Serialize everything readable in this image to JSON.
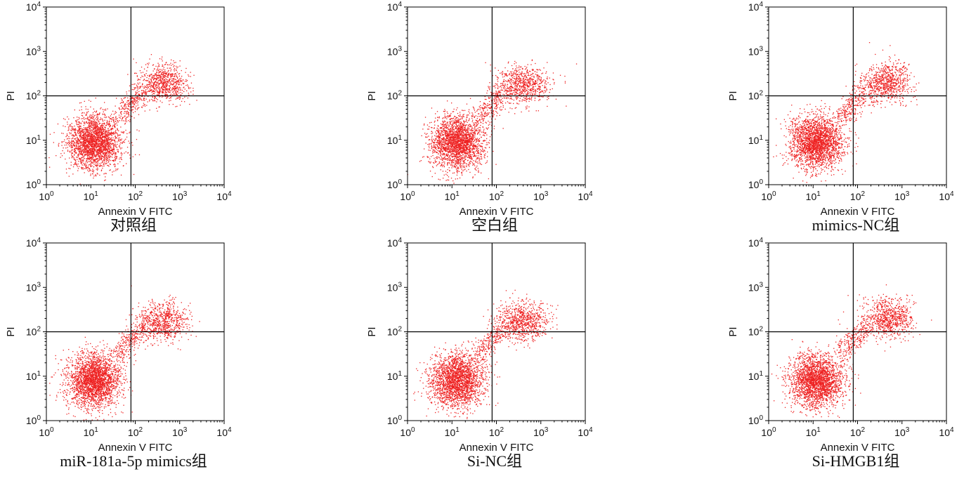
{
  "colors": {
    "points": "#ee2222",
    "axes": "#000000",
    "quadrant_lines": "#000000",
    "text": "#111111"
  },
  "chart_data": [
    {
      "type": "scatter",
      "caption": "对照组",
      "xlabel": "Annexin V FITC",
      "ylabel": "PI",
      "xscale": "log",
      "yscale": "log",
      "xlim": [
        1,
        10000
      ],
      "ylim": [
        1,
        10000
      ],
      "quadrant_gate": {
        "x": 80,
        "y": 100
      },
      "x_ticks": [
        "10^0",
        "10^1",
        "10^2",
        "10^3",
        "10^4"
      ],
      "y_ticks": [
        "10^0",
        "10^1",
        "10^2",
        "10^3",
        "10^4"
      ],
      "populations": [
        {
          "population": "live",
          "center": [
            12,
            9
          ],
          "spread_decades": [
            0.3,
            0.3
          ],
          "n_points": 2400
        },
        {
          "population": "late_apoptotic",
          "center": [
            420,
            190
          ],
          "spread_decades": [
            0.28,
            0.22
          ],
          "n_points": 800
        },
        {
          "population": "transitional",
          "from": [
            40,
            30
          ],
          "to": [
            150,
            130
          ],
          "n_points": 260
        }
      ]
    },
    {
      "type": "scatter",
      "caption": "空白组",
      "xlabel": "Annexin V FITC",
      "ylabel": "PI",
      "xscale": "log",
      "yscale": "log",
      "xlim": [
        1,
        10000
      ],
      "ylim": [
        1,
        10000
      ],
      "quadrant_gate": {
        "x": 80,
        "y": 100
      },
      "x_ticks": [
        "10^0",
        "10^1",
        "10^2",
        "10^3",
        "10^4"
      ],
      "y_ticks": [
        "10^0",
        "10^1",
        "10^2",
        "10^3",
        "10^4"
      ],
      "populations": [
        {
          "population": "live",
          "center": [
            13,
            9
          ],
          "spread_decades": [
            0.3,
            0.3
          ],
          "n_points": 2300
        },
        {
          "population": "late_apoptotic",
          "center": [
            400,
            180
          ],
          "spread_decades": [
            0.3,
            0.22
          ],
          "n_points": 750
        },
        {
          "population": "transitional",
          "from": [
            40,
            30
          ],
          "to": [
            150,
            130
          ],
          "n_points": 260
        }
      ]
    },
    {
      "type": "scatter",
      "caption": "mimics-NC组",
      "xlabel": "Annexin V FITC",
      "ylabel": "PI",
      "xscale": "log",
      "yscale": "log",
      "xlim": [
        1,
        10000
      ],
      "ylim": [
        1,
        10000
      ],
      "quadrant_gate": {
        "x": 80,
        "y": 100
      },
      "x_ticks": [
        "10^0",
        "10^1",
        "10^2",
        "10^3",
        "10^4"
      ],
      "y_ticks": [
        "10^0",
        "10^1",
        "10^2",
        "10^3",
        "10^4"
      ],
      "populations": [
        {
          "population": "live",
          "center": [
            12,
            9
          ],
          "spread_decades": [
            0.3,
            0.3
          ],
          "n_points": 2400
        },
        {
          "population": "late_apoptotic",
          "center": [
            450,
            190
          ],
          "spread_decades": [
            0.28,
            0.22
          ],
          "n_points": 800
        },
        {
          "population": "transitional",
          "from": [
            40,
            30
          ],
          "to": [
            150,
            130
          ],
          "n_points": 260
        }
      ]
    },
    {
      "type": "scatter",
      "caption": "miR-181a-5p mimics组",
      "xlabel": "Annexin V FITC",
      "ylabel": "PI",
      "xscale": "log",
      "yscale": "log",
      "xlim": [
        1,
        10000
      ],
      "ylim": [
        1,
        10000
      ],
      "quadrant_gate": {
        "x": 80,
        "y": 100
      },
      "x_ticks": [
        "10^0",
        "10^1",
        "10^2",
        "10^3",
        "10^4"
      ],
      "y_ticks": [
        "10^0",
        "10^1",
        "10^2",
        "10^3",
        "10^4"
      ],
      "populations": [
        {
          "population": "live",
          "center": [
            12,
            8
          ],
          "spread_decades": [
            0.3,
            0.3
          ],
          "n_points": 2500
        },
        {
          "population": "late_apoptotic",
          "center": [
            400,
            170
          ],
          "spread_decades": [
            0.28,
            0.22
          ],
          "n_points": 750
        },
        {
          "population": "transitional",
          "from": [
            40,
            30
          ],
          "to": [
            150,
            130
          ],
          "n_points": 260
        }
      ]
    },
    {
      "type": "scatter",
      "caption": "Si-NC组",
      "xlabel": "Annexin V FITC",
      "ylabel": "PI",
      "xscale": "log",
      "yscale": "log",
      "xlim": [
        1,
        10000
      ],
      "ylim": [
        1,
        10000
      ],
      "quadrant_gate": {
        "x": 80,
        "y": 100
      },
      "x_ticks": [
        "10^0",
        "10^1",
        "10^2",
        "10^3",
        "10^4"
      ],
      "y_ticks": [
        "10^0",
        "10^1",
        "10^2",
        "10^3",
        "10^4"
      ],
      "populations": [
        {
          "population": "live",
          "center": [
            13,
            8
          ],
          "spread_decades": [
            0.3,
            0.3
          ],
          "n_points": 2300
        },
        {
          "population": "late_apoptotic",
          "center": [
            380,
            170
          ],
          "spread_decades": [
            0.28,
            0.22
          ],
          "n_points": 800
        },
        {
          "population": "transitional",
          "from": [
            40,
            30
          ],
          "to": [
            150,
            130
          ],
          "n_points": 260
        }
      ]
    },
    {
      "type": "scatter",
      "caption": "Si-HMGB1组",
      "xlabel": "Annexin V FITC",
      "ylabel": "PI",
      "xscale": "log",
      "yscale": "log",
      "xlim": [
        1,
        10000
      ],
      "ylim": [
        1,
        10000
      ],
      "quadrant_gate": {
        "x": 80,
        "y": 100
      },
      "x_ticks": [
        "10^0",
        "10^1",
        "10^2",
        "10^3",
        "10^4"
      ],
      "y_ticks": [
        "10^0",
        "10^1",
        "10^2",
        "10^3",
        "10^4"
      ],
      "populations": [
        {
          "population": "live",
          "center": [
            12,
            8
          ],
          "spread_decades": [
            0.3,
            0.3
          ],
          "n_points": 2400
        },
        {
          "population": "late_apoptotic",
          "center": [
            480,
            200
          ],
          "spread_decades": [
            0.28,
            0.22
          ],
          "n_points": 800
        },
        {
          "population": "transitional",
          "from": [
            40,
            30
          ],
          "to": [
            150,
            130
          ],
          "n_points": 260
        }
      ]
    }
  ]
}
